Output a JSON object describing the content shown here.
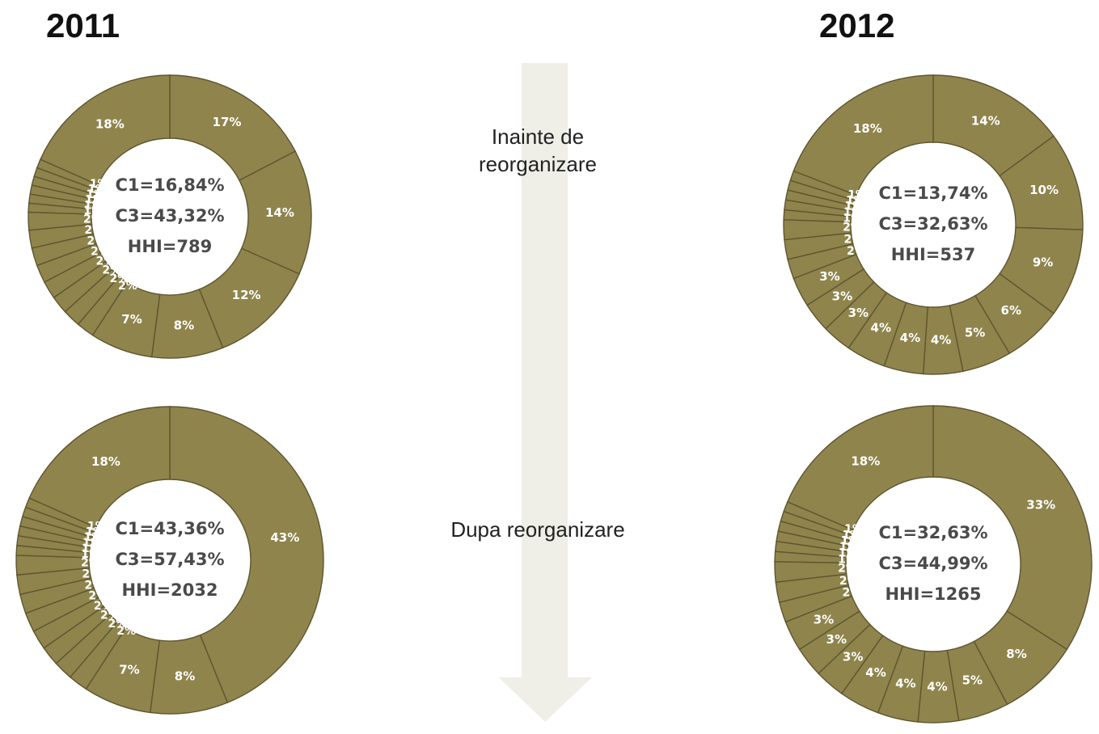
{
  "years": {
    "left": "2011",
    "right": "2012"
  },
  "stages": {
    "before": [
      "Inainte de",
      "reorganizare"
    ],
    "after": "Dupa reorganizare"
  },
  "colors": {
    "slice_fill": "#8f844c",
    "slice_stroke": "#5e5630",
    "label": "#ffffff",
    "arrow": "#efefe7",
    "center_text": "#4a4a4a"
  },
  "chart_data": [
    {
      "type": "pie",
      "year": "2011",
      "stage": "Inainte de reorganizare",
      "center_labels": [
        "C1=16,84%",
        "C3=43,32%",
        "HHI=789"
      ],
      "slice_labels": [
        "17%",
        "14%",
        "12%",
        "8%",
        "7%",
        "2%",
        "2%",
        "2%",
        "2%",
        "2%",
        "2%",
        "2%",
        "2%",
        "1%",
        "1%",
        "1%",
        "1%",
        "1%",
        "1%",
        "18%"
      ],
      "values": [
        17,
        14,
        12,
        8,
        7,
        2,
        2,
        2,
        2,
        2,
        2,
        2,
        2,
        1,
        1,
        1,
        1,
        1,
        1,
        18
      ]
    },
    {
      "type": "pie",
      "year": "2012",
      "stage": "Inainte de reorganizare",
      "center_labels": [
        "C1=13,74%",
        "C3=32,63%",
        "HHI=537"
      ],
      "slice_labels": [
        "14%",
        "10%",
        "9%",
        "6%",
        "5%",
        "4%",
        "4%",
        "4%",
        "3%",
        "3%",
        "3%",
        "2%",
        "2%",
        "2%",
        "1%",
        "1%",
        "1%",
        "1%",
        "1%",
        "18%"
      ],
      "values": [
        14,
        10,
        9,
        6,
        5,
        4,
        4,
        4,
        3,
        3,
        3,
        2,
        2,
        2,
        1,
        1,
        1,
        1,
        1,
        18
      ]
    },
    {
      "type": "pie",
      "year": "2011",
      "stage": "Dupa reorganizare",
      "center_labels": [
        "C1=43,36%",
        "C3=57,43%",
        "HHI=2032"
      ],
      "slice_labels": [
        "43%",
        "8%",
        "7%",
        "2%",
        "2%",
        "2%",
        "2%",
        "2%",
        "2%",
        "2%",
        "2%",
        "1%",
        "1%",
        "1%",
        "1%",
        "1%",
        "1%",
        "18%"
      ],
      "values": [
        43,
        8,
        7,
        2,
        2,
        2,
        2,
        2,
        2,
        2,
        2,
        1,
        1,
        1,
        1,
        1,
        1,
        18
      ]
    },
    {
      "type": "pie",
      "year": "2012",
      "stage": "Dupa reorganizare",
      "center_labels": [
        "C1=32,63%",
        "C3=44,99%",
        "HHI=1265"
      ],
      "slice_labels": [
        "33%",
        "8%",
        "5%",
        "4%",
        "4%",
        "4%",
        "3%",
        "3%",
        "3%",
        "2%",
        "2%",
        "2%",
        "1%",
        "1%",
        "1%",
        "1%",
        "1%",
        "1%",
        "18%"
      ],
      "values": [
        33,
        8,
        5,
        4,
        4,
        4,
        3,
        3,
        3,
        2,
        2,
        2,
        1,
        1,
        1,
        1,
        1,
        1,
        18
      ]
    }
  ]
}
